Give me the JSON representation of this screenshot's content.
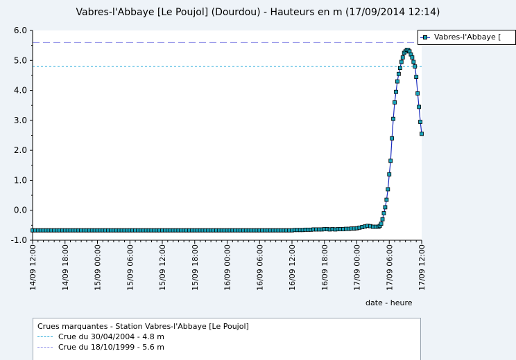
{
  "title": "Vabres-l'Abbaye [Le Poujol] (Dourdou) - Hauteurs en m (17/09/2014 12:14)",
  "xlabel": "date - heure",
  "legend_label": "Vabres-l'Abbaye [",
  "colors": {
    "series_line": "#1a2bbf",
    "series_marker": "#17a2b8",
    "crue_2004": "#22a7d8",
    "crue_1999": "#8a8ae8",
    "background": "#eef3f8"
  },
  "crues_box": {
    "heading": "Crues marquantes - Station Vabres-l'Abbaye [Le Poujol]",
    "items": [
      {
        "label": "Crue du 30/04/2004 - 4.8 m",
        "value": 4.8,
        "color": "#22a7d8"
      },
      {
        "label": "Crue du 18/10/1999 - 5.6 m",
        "value": 5.6,
        "color": "#8a8ae8"
      }
    ]
  },
  "chart_data": {
    "type": "line",
    "title": "Vabres-l'Abbaye [Le Poujol] (Dourdou) - Hauteurs en m (17/09/2014 12:14)",
    "xlabel": "date - heure",
    "ylabel": "",
    "ylim": [
      -1.0,
      6.0
    ],
    "yticks": [
      "6.0",
      "5.0",
      "4.0",
      "3.0",
      "2.0",
      "1.0",
      "0.0",
      "-1.0"
    ],
    "xlim_hours": [
      0,
      72
    ],
    "xticks": [
      {
        "h": 0,
        "label": "14/09 12:00"
      },
      {
        "h": 6,
        "label": "14/09 18:00"
      },
      {
        "h": 12,
        "label": "15/09 00:00"
      },
      {
        "h": 18,
        "label": "15/09 06:00"
      },
      {
        "h": 24,
        "label": "15/09 12:00"
      },
      {
        "h": 30,
        "label": "15/09 18:00"
      },
      {
        "h": 36,
        "label": "16/09 00:00"
      },
      {
        "h": 42,
        "label": "16/09 06:00"
      },
      {
        "h": 48,
        "label": "16/09 12:00"
      },
      {
        "h": 54,
        "label": "16/09 18:00"
      },
      {
        "h": 60,
        "label": "17/09 00:00"
      },
      {
        "h": 66,
        "label": "17/09 06:00"
      },
      {
        "h": 72,
        "label": "17/09 12:00"
      }
    ],
    "series": [
      {
        "name": "Vabres-l'Abbaye [",
        "flat_start_hour": 0,
        "flat_end_hour": 48,
        "flat_step_hours": 0.5,
        "flat_value": -0.67,
        "points": [
          [
            48.5,
            -0.66
          ],
          [
            49.0,
            -0.66
          ],
          [
            49.5,
            -0.66
          ],
          [
            50.0,
            -0.66
          ],
          [
            50.5,
            -0.65
          ],
          [
            51.0,
            -0.65
          ],
          [
            51.5,
            -0.65
          ],
          [
            52.0,
            -0.64
          ],
          [
            52.5,
            -0.64
          ],
          [
            53.0,
            -0.64
          ],
          [
            53.5,
            -0.64
          ],
          [
            54.0,
            -0.63
          ],
          [
            54.5,
            -0.63
          ],
          [
            55.0,
            -0.64
          ],
          [
            55.5,
            -0.63
          ],
          [
            56.0,
            -0.64
          ],
          [
            56.5,
            -0.63
          ],
          [
            57.0,
            -0.63
          ],
          [
            57.5,
            -0.63
          ],
          [
            58.0,
            -0.62
          ],
          [
            58.5,
            -0.62
          ],
          [
            59.0,
            -0.61
          ],
          [
            59.5,
            -0.61
          ],
          [
            60.0,
            -0.6
          ],
          [
            60.5,
            -0.58
          ],
          [
            61.0,
            -0.56
          ],
          [
            61.5,
            -0.54
          ],
          [
            62.0,
            -0.52
          ],
          [
            62.5,
            -0.53
          ],
          [
            63.0,
            -0.55
          ],
          [
            63.5,
            -0.55
          ],
          [
            64.0,
            -0.55
          ],
          [
            64.25,
            -0.52
          ],
          [
            64.5,
            -0.45
          ],
          [
            64.75,
            -0.3
          ],
          [
            65.0,
            -0.1
          ],
          [
            65.25,
            0.1
          ],
          [
            65.5,
            0.35
          ],
          [
            65.75,
            0.7
          ],
          [
            66.0,
            1.2
          ],
          [
            66.25,
            1.65
          ],
          [
            66.5,
            2.4
          ],
          [
            66.75,
            3.05
          ],
          [
            67.0,
            3.6
          ],
          [
            67.25,
            3.95
          ],
          [
            67.5,
            4.3
          ],
          [
            67.75,
            4.55
          ],
          [
            68.0,
            4.75
          ],
          [
            68.25,
            4.95
          ],
          [
            68.5,
            5.1
          ],
          [
            68.75,
            5.25
          ],
          [
            69.0,
            5.3
          ],
          [
            69.25,
            5.35
          ],
          [
            69.5,
            5.35
          ],
          [
            69.75,
            5.3
          ],
          [
            70.0,
            5.2
          ],
          [
            70.25,
            5.1
          ],
          [
            70.5,
            4.95
          ],
          [
            70.75,
            4.8
          ],
          [
            71.0,
            4.45
          ],
          [
            71.25,
            3.9
          ],
          [
            71.5,
            3.45
          ],
          [
            71.75,
            2.95
          ],
          [
            72.0,
            2.55
          ]
        ]
      }
    ],
    "reference_lines": [
      {
        "label": "Crue du 30/04/2004 - 4.8 m",
        "value": 4.8
      },
      {
        "label": "Crue du 18/10/1999 - 5.6 m",
        "value": 5.6
      }
    ],
    "grid": false,
    "legend": "top-right"
  }
}
